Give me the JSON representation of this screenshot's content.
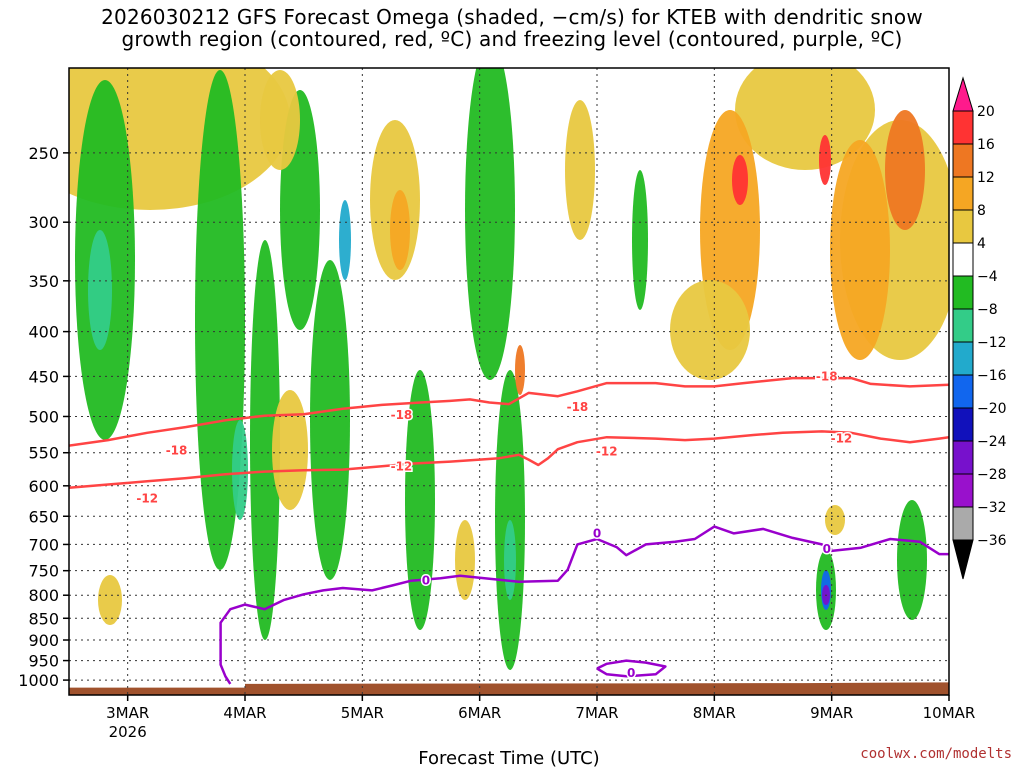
{
  "title": {
    "line1": "2026030212 GFS Forecast Omega (shaded, −cm/s) for KTEB with dendritic snow",
    "line2": "growth region (contoured, red, ºC) and freezing level (contoured, purple, ºC)"
  },
  "credit": "coolwx.com/modelts",
  "colors": {
    "dsgz": "#ff4444",
    "freezing": "#9900cc",
    "ground": "#a0522d"
  },
  "chart_data": {
    "type": "heatmap",
    "xlabel": "Forecast Time (UTC)",
    "ylabel": "",
    "x_ticks": [
      {
        "label": "3MAR",
        "sub": "2026",
        "t": 12
      },
      {
        "label": "4MAR",
        "sub": "",
        "t": 36
      },
      {
        "label": "5MAR",
        "sub": "",
        "t": 60
      },
      {
        "label": "6MAR",
        "sub": "",
        "t": 84
      },
      {
        "label": "7MAR",
        "sub": "",
        "t": 108
      },
      {
        "label": "8MAR",
        "sub": "",
        "t": 132
      },
      {
        "label": "9MAR",
        "sub": "",
        "t": 156
      },
      {
        "label": "10MAR",
        "sub": "",
        "t": 180
      }
    ],
    "xlim": [
      0,
      180
    ],
    "y_ticks": [
      250,
      300,
      350,
      400,
      450,
      500,
      550,
      600,
      650,
      700,
      750,
      800,
      850,
      900,
      950,
      1000
    ],
    "ylim": [
      1040,
      200
    ],
    "y_scale": "log",
    "grid": true,
    "colorbar": {
      "labels": [
        "20",
        "16",
        "12",
        "8",
        "4",
        "−4",
        "−8",
        "−12",
        "−16",
        "−20",
        "−24",
        "−28",
        "−32",
        "−36"
      ],
      "colors": [
        "#ff1a8c",
        "#ff3333",
        "#ee7722",
        "#f5a623",
        "#e8c840",
        "#ffffff",
        "#22bb22",
        "#33cc88",
        "#22aacc",
        "#1166ee",
        "#1111bb",
        "#7711cc",
        "#9911cc",
        "#aaaaaa",
        "#000000"
      ]
    },
    "contours": [
      {
        "level": "-18",
        "color": "#ff4444",
        "points": [
          [
            0,
            540
          ],
          [
            8,
            532
          ],
          [
            16,
            522
          ],
          [
            24,
            514
          ],
          [
            32,
            505
          ],
          [
            40,
            499
          ],
          [
            48,
            497
          ],
          [
            56,
            490
          ],
          [
            64,
            485
          ],
          [
            72,
            482
          ],
          [
            78,
            480
          ],
          [
            82,
            478
          ],
          [
            86,
            482
          ],
          [
            90,
            484
          ],
          [
            94,
            470
          ],
          [
            100,
            474
          ],
          [
            104,
            468
          ],
          [
            110,
            458
          ],
          [
            120,
            458
          ],
          [
            126,
            462
          ],
          [
            132,
            462
          ],
          [
            138,
            458
          ],
          [
            148,
            452
          ],
          [
            154,
            452
          ],
          [
            160,
            452
          ],
          [
            164,
            459
          ],
          [
            172,
            462
          ],
          [
            180,
            460
          ]
        ],
        "labels": [
          [
            22,
            547,
            "-18"
          ],
          [
            68,
            498,
            "-18"
          ],
          [
            104,
            488,
            "-18"
          ],
          [
            155,
            450,
            "-18"
          ]
        ]
      },
      {
        "level": "-12",
        "color": "#ff4444",
        "points": [
          [
            0,
            603
          ],
          [
            8,
            598
          ],
          [
            16,
            593
          ],
          [
            24,
            588
          ],
          [
            32,
            582
          ],
          [
            40,
            578
          ],
          [
            48,
            576
          ],
          [
            56,
            575
          ],
          [
            64,
            570
          ],
          [
            70,
            566
          ],
          [
            78,
            563
          ],
          [
            84,
            560
          ],
          [
            88,
            558
          ],
          [
            92,
            553
          ],
          [
            94,
            560
          ],
          [
            96,
            568
          ],
          [
            98,
            558
          ],
          [
            100,
            545
          ],
          [
            104,
            535
          ],
          [
            110,
            528
          ],
          [
            120,
            530
          ],
          [
            126,
            532
          ],
          [
            132,
            530
          ],
          [
            140,
            525
          ],
          [
            146,
            522
          ],
          [
            154,
            520
          ],
          [
            160,
            522
          ],
          [
            166,
            530
          ],
          [
            172,
            535
          ],
          [
            178,
            530
          ],
          [
            180,
            528
          ]
        ],
        "labels": [
          [
            16,
            620,
            "-12"
          ],
          [
            68,
            570,
            "-12"
          ],
          [
            110,
            548,
            "-12"
          ],
          [
            158,
            530,
            "-12"
          ]
        ]
      },
      {
        "level": "0",
        "color": "#9900cc",
        "points": [
          [
            33,
            1010
          ],
          [
            32,
            990
          ],
          [
            31,
            960
          ],
          [
            31,
            900
          ],
          [
            31,
            860
          ],
          [
            33,
            830
          ],
          [
            36,
            820
          ],
          [
            40,
            830
          ],
          [
            44,
            810
          ],
          [
            48,
            798
          ],
          [
            52,
            790
          ],
          [
            56,
            785
          ],
          [
            62,
            790
          ],
          [
            66,
            780
          ],
          [
            70,
            770
          ],
          [
            76,
            765
          ],
          [
            80,
            760
          ],
          [
            84,
            764
          ],
          [
            88,
            768
          ],
          [
            92,
            772
          ],
          [
            100,
            770
          ],
          [
            102,
            748
          ],
          [
            104,
            700
          ],
          [
            108,
            690
          ],
          [
            112,
            705
          ],
          [
            114,
            720
          ],
          [
            118,
            700
          ],
          [
            124,
            695
          ],
          [
            128,
            690
          ],
          [
            132,
            668
          ],
          [
            136,
            680
          ],
          [
            142,
            672
          ],
          [
            148,
            688
          ],
          [
            154,
            700
          ],
          [
            156,
            712
          ],
          [
            162,
            706
          ],
          [
            168,
            690
          ],
          [
            174,
            695
          ],
          [
            178,
            718
          ],
          [
            180,
            718
          ]
        ],
        "labels": [
          [
            73,
            770,
            "0"
          ],
          [
            108,
            680,
            "0"
          ],
          [
            155,
            708,
            "0"
          ]
        ]
      },
      {
        "level": "0",
        "color": "#9900cc",
        "closed": true,
        "points": [
          [
            108,
            970
          ],
          [
            110,
            958
          ],
          [
            114,
            950
          ],
          [
            118,
            955
          ],
          [
            122,
            965
          ],
          [
            120,
            985
          ],
          [
            114,
            990
          ],
          [
            110,
            985
          ],
          [
            108,
            970
          ]
        ],
        "labels": [
          [
            115,
            982,
            "0"
          ]
        ]
      }
    ]
  }
}
